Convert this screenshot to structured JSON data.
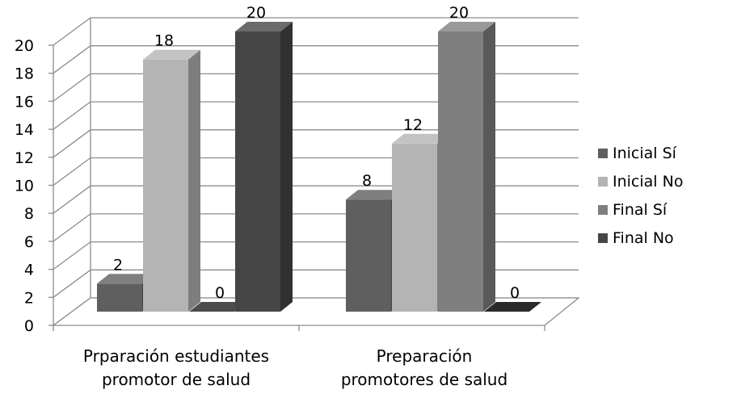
{
  "chart_data": {
    "type": "bar",
    "style": "3d-clustered-column",
    "categories": [
      [
        "Prparación estudiantes",
        "promotor de salud"
      ],
      [
        "Preparación",
        "promotores de salud"
      ]
    ],
    "series": [
      {
        "name": "Inicial Sí",
        "values": [
          2,
          8
        ],
        "color": "#5f5f5f"
      },
      {
        "name": "Inicial No",
        "values": [
          18,
          12
        ],
        "color": "#b4b4b4"
      },
      {
        "name": "Final Sí",
        "values": [
          0,
          20
        ],
        "color": "#7f7f7f"
      },
      {
        "name": "Final No",
        "values": [
          20,
          0
        ],
        "color": "#464646"
      }
    ],
    "yticks": [
      "0",
      "2",
      "4",
      "6",
      "8",
      "10",
      "12",
      "14",
      "16",
      "18",
      "20"
    ],
    "ylim": [
      0,
      20
    ],
    "grid": true,
    "legend_position": "right"
  }
}
